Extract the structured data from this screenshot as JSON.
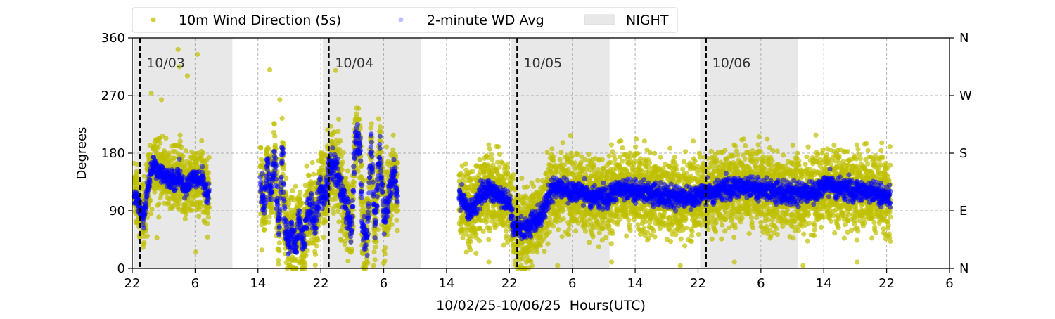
{
  "chart_data": {
    "type": "scatter",
    "xlabel": "10/02/25-10/06/25  Hours(UTC)",
    "ylabel": "Degrees",
    "x_units": "hours since 10/02 22:00 UTC",
    "xlim": [
      0,
      104
    ],
    "ylim": [
      0,
      360
    ],
    "x_ticks": [
      0,
      8,
      16,
      24,
      32,
      40,
      48,
      56,
      64,
      72,
      80,
      88,
      96,
      104
    ],
    "x_tick_labels": [
      "22",
      "6",
      "14",
      "22",
      "6",
      "14",
      "22",
      "6",
      "14",
      "22",
      "6",
      "14",
      "22",
      "6"
    ],
    "y_ticks": [
      0,
      90,
      180,
      270,
      360
    ],
    "y_tick_labels": [
      "0",
      "90",
      "180",
      "270",
      "360"
    ],
    "y2_tick_labels": [
      "N",
      "E",
      "S",
      "W",
      "N"
    ],
    "grid": true,
    "legend": {
      "placement": "top",
      "entries": [
        "10m Wind Direction (5s)",
        "2-minute WD Avg",
        "NIGHT"
      ]
    },
    "colors": {
      "wind": "#bfbf00",
      "avg": "#0000ff",
      "night": "#e8e8e8"
    },
    "night_periods": [
      [
        0.25,
        12.75
      ],
      [
        24.25,
        36.75
      ],
      [
        48.25,
        60.75
      ],
      [
        72.25,
        84.75
      ]
    ],
    "date_lines": [
      {
        "x": 1,
        "label": "10/03"
      },
      {
        "x": 25,
        "label": "10/04"
      },
      {
        "x": 49,
        "label": "10/05"
      },
      {
        "x": 73,
        "label": "10/06"
      }
    ],
    "series": [
      {
        "name": "2-minute WD Avg",
        "segments": [
          {
            "noise": 12,
            "wind_spread": 35,
            "points": [
              [
                0.2,
                115
              ],
              [
                0.7,
                105
              ],
              [
                1.1,
                90
              ],
              [
                1.5,
                80
              ],
              [
                2.0,
                130
              ],
              [
                2.7,
                165
              ],
              [
                3.3,
                150
              ],
              [
                4.7,
                140
              ],
              [
                5.6,
                135
              ],
              [
                6.0,
                150
              ],
              [
                6.6,
                125
              ],
              [
                7.8,
                140
              ],
              [
                9.0,
                140
              ],
              [
                9.6,
                110
              ],
              [
                9.8,
                120
              ]
            ]
          },
          {
            "noise": 20,
            "wind_spread": 45,
            "points": [
              [
                16.3,
                140
              ],
              [
                16.8,
                100
              ],
              [
                17.2,
                160
              ],
              [
                17.7,
                110
              ],
              [
                18.1,
                175
              ],
              [
                18.7,
                50
              ],
              [
                19.1,
                190
              ],
              [
                19.4,
                80
              ],
              [
                19.9,
                40
              ],
              [
                20.3,
                60
              ],
              [
                20.8,
                30
              ],
              [
                21.2,
                80
              ],
              [
                21.7,
                40
              ],
              [
                22.6,
                100
              ],
              [
                23.3,
                70
              ],
              [
                23.9,
                130
              ],
              [
                24.5,
                110
              ],
              [
                25.2,
                160
              ],
              [
                26.0,
                155
              ],
              [
                26.6,
                120
              ],
              [
                27.0,
                110
              ],
              [
                27.5,
                80
              ],
              [
                27.9,
                60
              ],
              [
                28.4,
                210
              ],
              [
                29.0,
                190
              ],
              [
                29.3,
                60
              ],
              [
                29.9,
                45
              ],
              [
                30.4,
                200
              ],
              [
                30.9,
                60
              ],
              [
                31.5,
                190
              ],
              [
                32.0,
                80
              ],
              [
                32.6,
                110
              ],
              [
                33.3,
                150
              ],
              [
                33.8,
                100
              ]
            ]
          },
          {
            "noise": 14,
            "wind_spread": 42,
            "points": [
              [
                41.6,
                110
              ],
              [
                43.2,
                90
              ],
              [
                44.9,
                125
              ],
              [
                46.7,
                115
              ],
              [
                48.1,
                100
              ],
              [
                48.5,
                65
              ],
              [
                49.9,
                60
              ],
              [
                51.2,
                75
              ],
              [
                52.1,
                85
              ],
              [
                53.4,
                125
              ],
              [
                54.8,
                125
              ],
              [
                57.5,
                115
              ],
              [
                60.2,
                110
              ],
              [
                62.0,
                125
              ],
              [
                64.6,
                120
              ],
              [
                67.3,
                115
              ],
              [
                70.0,
                110
              ],
              [
                72.7,
                115
              ],
              [
                75.4,
                125
              ],
              [
                78.1,
                128
              ],
              [
                80.8,
                122
              ],
              [
                83.4,
                118
              ],
              [
                86.1,
                118
              ],
              [
                88.8,
                130
              ],
              [
                91.5,
                122
              ],
              [
                94.2,
                120
              ],
              [
                96.5,
                110
              ]
            ]
          }
        ]
      },
      {
        "name": "10m Wind Direction (5s)",
        "derived_from": "2-minute WD Avg with wind_spread scatter and occasional outliers",
        "outlier_rate": 0.01
      }
    ]
  }
}
